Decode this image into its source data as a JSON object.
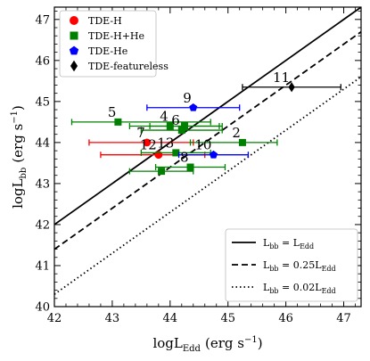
{
  "chart_data": {
    "type": "scatter",
    "xlabel": "logL",
    "xlabel_sub": "Edd",
    "xlabel_unit": "(erg s",
    "xlabel_unit_sup": "−1",
    "xlabel_unit_close": ")",
    "ylabel": "logL",
    "ylabel_sub": "bb",
    "ylabel_unit": "(erg s",
    "ylabel_unit_sup": "−1",
    "ylabel_unit_close": ")",
    "xlim": [
      42,
      47.3
    ],
    "ylim": [
      40,
      47.3
    ],
    "x_ticks": [
      42,
      43,
      44,
      45,
      46,
      47
    ],
    "y_ticks": [
      40,
      41,
      42,
      43,
      44,
      45,
      46,
      47
    ],
    "x_tick_labels": [
      "42",
      "43",
      "44",
      "45",
      "46",
      "47"
    ],
    "y_tick_labels": [
      "40",
      "41",
      "42",
      "43",
      "44",
      "45",
      "46",
      "47"
    ],
    "grid": false,
    "series": [
      {
        "name": "TDE-H",
        "color": "#ff0000",
        "marker": "circle",
        "points": [
          {
            "label": "7",
            "x": 43.6,
            "y": 44.0,
            "xerr_low": 1.0,
            "xerr_high": 0.8
          },
          {
            "label": "12",
            "x": 43.8,
            "y": 43.7,
            "xerr_low": 1.0,
            "xerr_high": 0.8
          }
        ]
      },
      {
        "name": "TDE-H+He",
        "color": "#008000",
        "marker": "square",
        "points": [
          {
            "label": "5",
            "x": 43.1,
            "y": 44.5,
            "xerr_low": 0.8,
            "xerr_high": 1.6
          },
          {
            "label": "4",
            "x": 44.0,
            "y": 44.4,
            "xerr_low": 0.7,
            "xerr_high": 0.9
          },
          {
            "label": "6",
            "x": 44.2,
            "y": 44.3,
            "xerr_low": 0.7,
            "xerr_high": 0.7
          },
          {
            "label": "",
            "x": 44.25,
            "y": 44.4,
            "xerr_low": 0.6,
            "xerr_high": 0.6
          },
          {
            "label": "2",
            "x": 45.25,
            "y": 44.0,
            "xerr_low": 0.9,
            "xerr_high": 0.6
          },
          {
            "label": "13",
            "x": 44.1,
            "y": 43.75,
            "xerr_low": 0.6,
            "xerr_high": 0.6
          },
          {
            "label": "8",
            "x": 44.35,
            "y": 43.4,
            "xerr_low": 0.6,
            "xerr_high": 0.6
          },
          {
            "label": "",
            "x": 43.85,
            "y": 43.3,
            "xerr_low": 0.55,
            "xerr_high": 0.55
          }
        ]
      },
      {
        "name": "TDE-He",
        "color": "#0000ff",
        "marker": "pentagon",
        "points": [
          {
            "label": "9",
            "x": 44.4,
            "y": 44.85,
            "xerr_low": 0.8,
            "xerr_high": 0.8
          },
          {
            "label": "10",
            "x": 44.75,
            "y": 43.7,
            "xerr_low": 0.6,
            "xerr_high": 0.6
          }
        ]
      },
      {
        "name": "TDE-featureless",
        "color": "#000000",
        "marker": "diamond",
        "points": [
          {
            "label": "11",
            "x": 46.1,
            "y": 45.35,
            "xerr_low": 0.85,
            "xerr_high": 0.85
          }
        ]
      }
    ],
    "lines": [
      {
        "label_main": "L",
        "label_sub": "bb",
        "label_eq": " = L",
        "label_sub2": "Edd",
        "label_coef": "",
        "dash": "solid",
        "offset": 0
      },
      {
        "label_main": "L",
        "label_sub": "bb",
        "label_eq": " = 0.25L",
        "label_sub2": "Edd",
        "label_coef": "0.25",
        "dash": "dashed",
        "offset": -0.602
      },
      {
        "label_main": "L",
        "label_sub": "bb",
        "label_eq": " = 0.02L",
        "label_sub2": "Edd",
        "label_coef": "0.02",
        "dash": "dotted",
        "offset": -1.699
      }
    ],
    "legend_markers_position": "top-left",
    "legend_lines_position": "bottom-right"
  }
}
